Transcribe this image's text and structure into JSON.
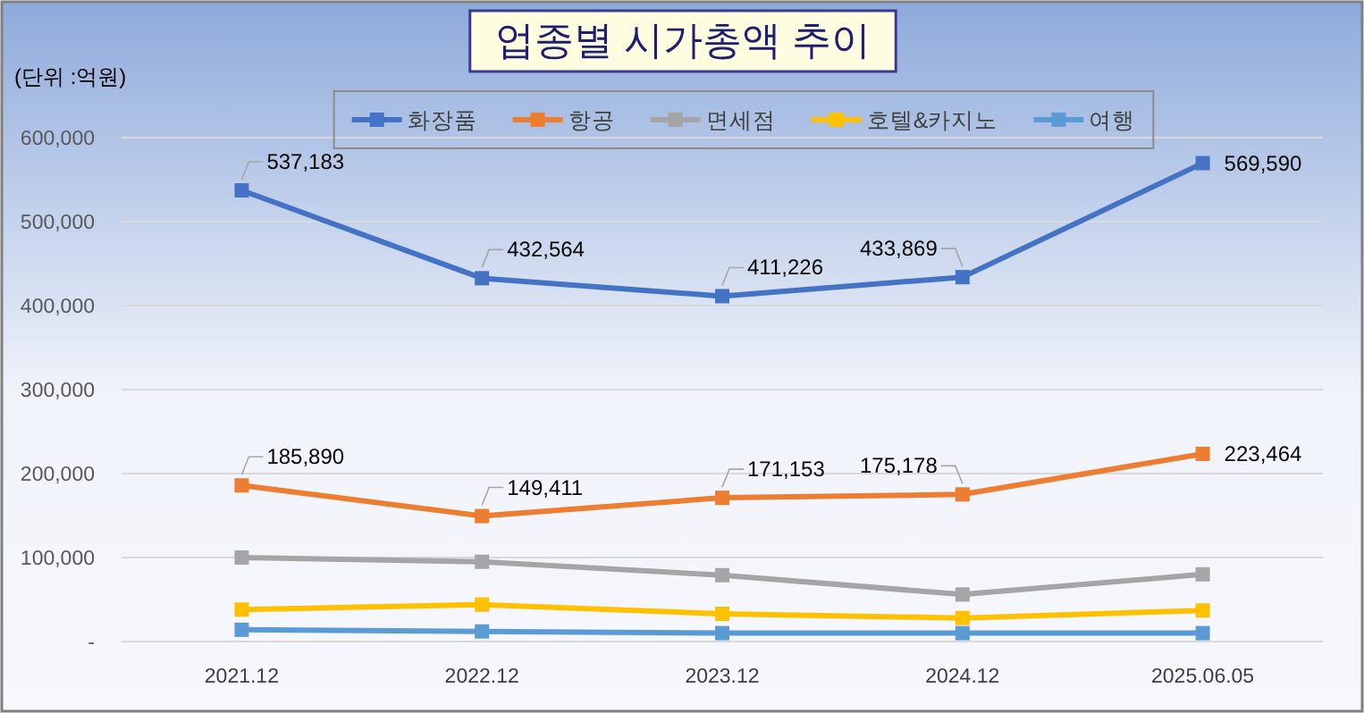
{
  "chart_data": {
    "type": "line",
    "title": "업종별 시가총액 추이",
    "ylabel": "(단위 :억원)",
    "categories": [
      "2021.12",
      "2022.12",
      "2023.12",
      "2024.12",
      "2025.06.05"
    ],
    "series": [
      {
        "name": "화장품",
        "color": "#4472c4",
        "values": [
          537183,
          432564,
          411226,
          433869,
          569590
        ],
        "value_labels": [
          "537,183",
          "432,564",
          "411,226",
          "433,869",
          "569,590"
        ]
      },
      {
        "name": "항공",
        "color": "#ed7d31",
        "values": [
          185890,
          149411,
          171153,
          175178,
          223464
        ],
        "value_labels": [
          "185,890",
          "149,411",
          "171,153",
          "175,178",
          "223,464"
        ]
      },
      {
        "name": "면세점",
        "color": "#a5a5a5",
        "values": [
          100000,
          95000,
          79000,
          56000,
          80000
        ]
      },
      {
        "name": "호텔&카지노",
        "color": "#ffc000",
        "values": [
          38000,
          44000,
          33000,
          28000,
          37000
        ]
      },
      {
        "name": "여행",
        "color": "#5b9bd5",
        "values": [
          14000,
          12000,
          10000,
          10000,
          10000
        ]
      }
    ],
    "ylim": [
      0,
      600000
    ],
    "yticks": [
      {
        "value": 0,
        "label": "-"
      },
      {
        "value": 100000,
        "label": "100,000"
      },
      {
        "value": 200000,
        "label": "200,000"
      },
      {
        "value": 300000,
        "label": "300,000"
      },
      {
        "value": 400000,
        "label": "400,000"
      },
      {
        "value": 500000,
        "label": "500,000"
      },
      {
        "value": 600000,
        "label": "600,000"
      }
    ],
    "grid": "y",
    "legend": "top",
    "marker": "square",
    "line_style": "solid"
  }
}
